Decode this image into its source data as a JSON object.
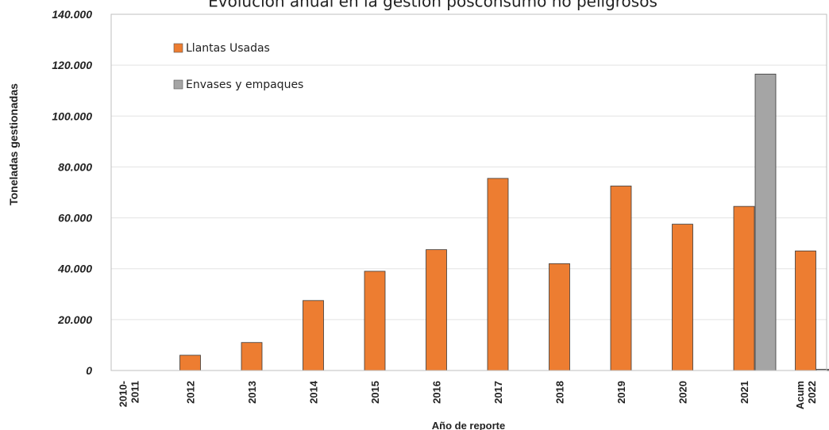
{
  "chart_data": {
    "type": "bar",
    "title": "Evolución anual en la gestión posconsumo no peligrosos",
    "xlabel": "Año de reporte",
    "ylabel": "Toneladas gestionadas",
    "ylim": [
      0,
      140000
    ],
    "yticks": [
      "0",
      "20.000",
      "40.000",
      "60.000",
      "80.000",
      "100.000",
      "120.000",
      "140.000"
    ],
    "categories": [
      [
        "2010-",
        "2011"
      ],
      [
        "2012"
      ],
      [
        "2013"
      ],
      [
        "2014"
      ],
      [
        "2015"
      ],
      [
        "2016"
      ],
      [
        "2017"
      ],
      [
        "2018"
      ],
      [
        "2019"
      ],
      [
        "2020"
      ],
      [
        "2021"
      ],
      [
        "Acum",
        "2022"
      ]
    ],
    "series": [
      {
        "name": "Llantas Usadas",
        "color": "#ED7D31",
        "values": [
          0,
          6000,
          11000,
          27500,
          39000,
          47500,
          75500,
          42000,
          72500,
          57500,
          64500,
          47000
        ]
      },
      {
        "name": "Envases y empaques",
        "color": "#A5A5A5",
        "values": [
          0,
          0,
          0,
          0,
          0,
          0,
          0,
          0,
          0,
          0,
          116500,
          500
        ]
      }
    ],
    "grid": true,
    "legend_position": "top-left"
  }
}
